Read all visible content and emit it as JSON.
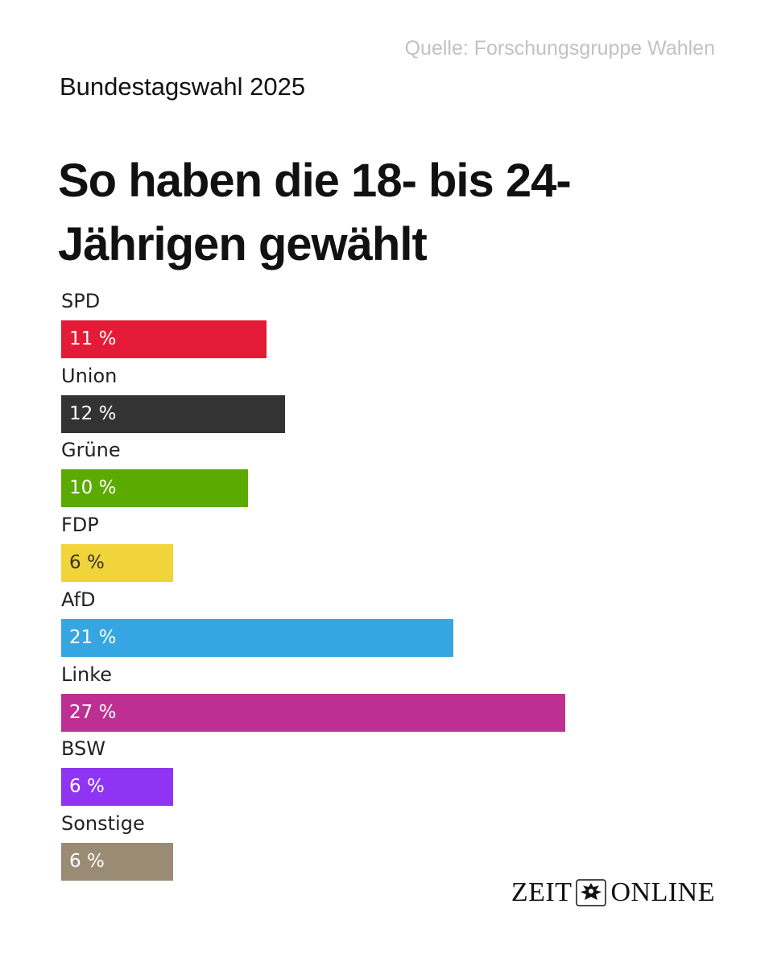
{
  "source": "Quelle: Forschungsgruppe Wahlen",
  "kicker": "Bundestagswahl 2025",
  "title": "So haben die 18- bis 24-Jährigen gewählt",
  "logo": {
    "left": "ZEIT",
    "right": "ONLINE",
    "emblem": "eagle-crest-icon"
  },
  "chart_data": {
    "type": "bar",
    "orientation": "horizontal",
    "title": "So haben die 18- bis 24-Jährigen gewählt",
    "unit": "%",
    "categories": [
      "SPD",
      "Union",
      "Grüne",
      "FDP",
      "AfD",
      "Linke",
      "BSW",
      "Sonstige"
    ],
    "values": [
      11,
      12,
      10,
      6,
      21,
      27,
      6,
      6
    ],
    "value_labels": [
      "11 %",
      "12 %",
      "10 %",
      "6 %",
      "21 %",
      "27 %",
      "6 %",
      "6 %"
    ],
    "colors": [
      "#e31b36",
      "#333333",
      "#5aaa00",
      "#f0d43a",
      "#35a6e1",
      "#be2f94",
      "#8e34f2",
      "#9a8b75"
    ],
    "label_colors": [
      "#ffffff",
      "#ffffff",
      "#ffffff",
      "#333333",
      "#ffffff",
      "#ffffff",
      "#ffffff",
      "#ffffff"
    ],
    "xlim": [
      0,
      27
    ]
  }
}
